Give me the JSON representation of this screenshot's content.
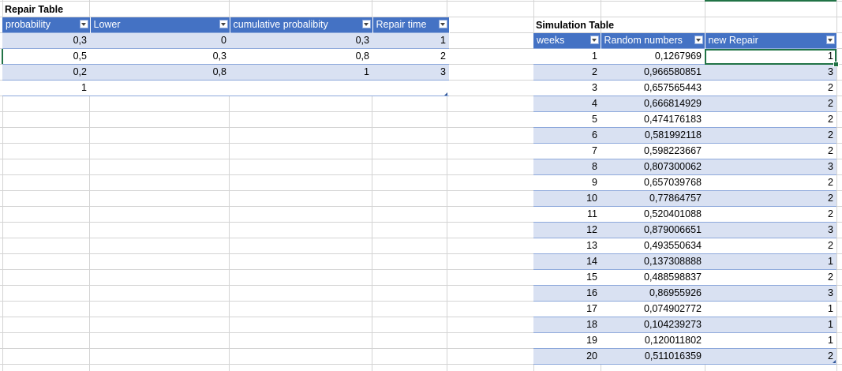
{
  "repair_table": {
    "title": "Repair Table",
    "headers": [
      "probability",
      "Lower",
      "cumulative probalibity",
      "Repair time"
    ],
    "rows": [
      [
        "0,3",
        "0",
        "0,3",
        "1"
      ],
      [
        "0,5",
        "0,3",
        "0,8",
        "2"
      ],
      [
        "0,2",
        "0,8",
        "1",
        "3"
      ],
      [
        "1",
        "",
        "",
        ""
      ]
    ]
  },
  "simulation_table": {
    "title": "Simulation Table",
    "headers": [
      "weeks",
      "Random numbers",
      "new Repair"
    ],
    "rows": [
      [
        "1",
        "0,1267969",
        "1"
      ],
      [
        "2",
        "0,966580851",
        "3"
      ],
      [
        "3",
        "0,657565443",
        "2"
      ],
      [
        "4",
        "0,666814929",
        "2"
      ],
      [
        "5",
        "0,474176183",
        "2"
      ],
      [
        "6",
        "0,581992118",
        "2"
      ],
      [
        "7",
        "0,598223667",
        "2"
      ],
      [
        "8",
        "0,807300062",
        "3"
      ],
      [
        "9",
        "0,657039768",
        "2"
      ],
      [
        "10",
        "0,77864757",
        "2"
      ],
      [
        "11",
        "0,520401088",
        "2"
      ],
      [
        "12",
        "0,879006651",
        "3"
      ],
      [
        "13",
        "0,493550634",
        "2"
      ],
      [
        "14",
        "0,137308888",
        "1"
      ],
      [
        "15",
        "0,488598837",
        "2"
      ],
      [
        "16",
        "0,86955926",
        "3"
      ],
      [
        "17",
        "0,074902772",
        "1"
      ],
      [
        "18",
        "0,104239273",
        "1"
      ],
      [
        "19",
        "0,120011802",
        "1"
      ],
      [
        "20",
        "0,511016359",
        "2"
      ]
    ]
  },
  "colors": {
    "header": "#4472c4",
    "band": "#d9e1f2",
    "selection": "#217346",
    "gridline": "#d4d4d4"
  }
}
